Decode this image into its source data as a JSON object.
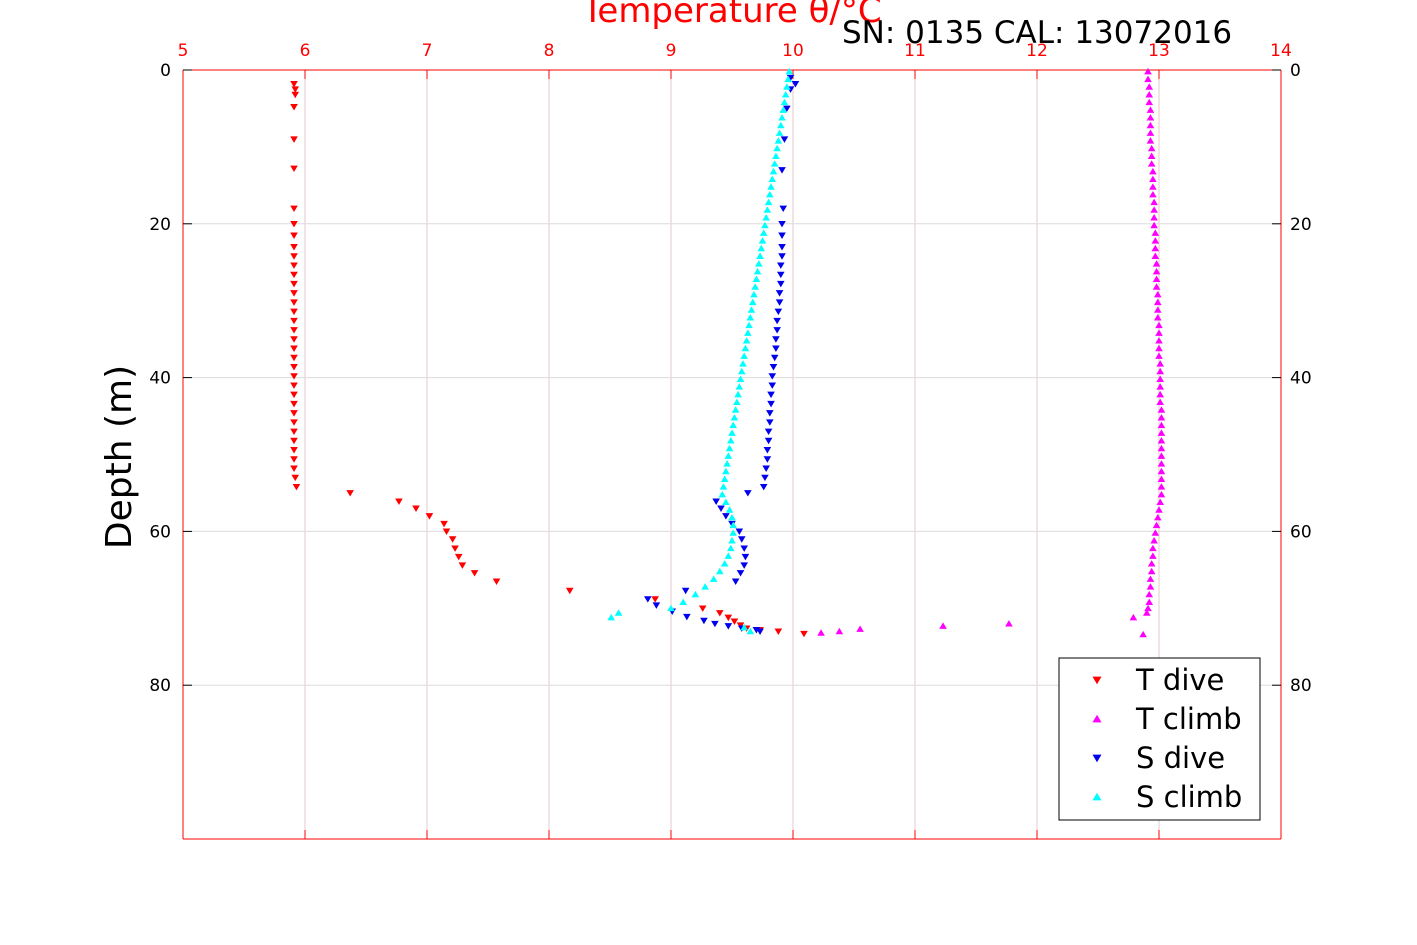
{
  "chart_data": {
    "type": "scatter",
    "title": "",
    "annotation": "SN: 0135  CAL: 13072016",
    "xlabel": "Temperature θ/°C",
    "ylabel": "Depth (m)",
    "xlim": [
      5,
      14
    ],
    "ylim": [
      0,
      100
    ],
    "y_reversed": true,
    "x_axis_position": "top",
    "y_axis_sides": [
      "left",
      "right"
    ],
    "xticks": [
      5,
      6,
      7,
      8,
      9,
      10,
      11,
      12,
      13,
      14
    ],
    "yticks": [
      0,
      20,
      40,
      60,
      80
    ],
    "grid": true,
    "legend_position": "bottom-right",
    "colors": {
      "axis": "#ff0000",
      "grid": "#e6c8c8",
      "t_dive": "#ff0000",
      "t_climb": "#ff00ff",
      "s_dive": "#0000ee",
      "s_climb": "#00ffff"
    },
    "series": [
      {
        "name": "T dive",
        "marker": "triangle-down",
        "color": "#ff0000",
        "points": [
          [
            5.91,
            1.8
          ],
          [
            5.92,
            2.5
          ],
          [
            5.92,
            3.2
          ],
          [
            5.91,
            4.8
          ],
          [
            5.91,
            9
          ],
          [
            5.91,
            12.8
          ],
          [
            5.91,
            18
          ],
          [
            5.91,
            20
          ],
          [
            5.91,
            21.5
          ],
          [
            5.91,
            23
          ],
          [
            5.91,
            24.2
          ],
          [
            5.91,
            25.4
          ],
          [
            5.91,
            26.6
          ],
          [
            5.91,
            27.8
          ],
          [
            5.91,
            29
          ],
          [
            5.91,
            30.2
          ],
          [
            5.91,
            31.4
          ],
          [
            5.91,
            32.6
          ],
          [
            5.91,
            33.8
          ],
          [
            5.91,
            35
          ],
          [
            5.91,
            36.2
          ],
          [
            5.91,
            37.4
          ],
          [
            5.91,
            38.6
          ],
          [
            5.91,
            39.8
          ],
          [
            5.91,
            41
          ],
          [
            5.91,
            42.2
          ],
          [
            5.91,
            43.4
          ],
          [
            5.91,
            44.6
          ],
          [
            5.91,
            45.8
          ],
          [
            5.91,
            47
          ],
          [
            5.91,
            48.2
          ],
          [
            5.91,
            49.4
          ],
          [
            5.91,
            50.6
          ],
          [
            5.91,
            51.8
          ],
          [
            5.92,
            53
          ],
          [
            5.93,
            54.2
          ],
          [
            6.37,
            55
          ],
          [
            6.77,
            56.1
          ],
          [
            6.91,
            57
          ],
          [
            7.02,
            58
          ],
          [
            7.14,
            59
          ],
          [
            7.16,
            60
          ],
          [
            7.21,
            61
          ],
          [
            7.23,
            62.2
          ],
          [
            7.26,
            63.3
          ],
          [
            7.29,
            64.4
          ],
          [
            7.39,
            65.4
          ],
          [
            7.57,
            66.5
          ],
          [
            8.17,
            67.7
          ],
          [
            8.87,
            68.8
          ],
          [
            9.26,
            70
          ],
          [
            9.4,
            70.6
          ],
          [
            9.47,
            71.2
          ],
          [
            9.52,
            71.7
          ],
          [
            9.57,
            72.2
          ],
          [
            9.62,
            72.6
          ],
          [
            9.73,
            72.8
          ],
          [
            9.88,
            73
          ],
          [
            10.09,
            73.3
          ]
        ]
      },
      {
        "name": "T climb",
        "marker": "triangle-up",
        "color": "#ff00ff",
        "points": [
          [
            12.91,
            0.2
          ],
          [
            12.91,
            1.2
          ],
          [
            12.92,
            2.2
          ],
          [
            12.92,
            3.2
          ],
          [
            12.92,
            4.2
          ],
          [
            12.93,
            5.2
          ],
          [
            12.93,
            6.2
          ],
          [
            12.93,
            7.2
          ],
          [
            12.93,
            8.2
          ],
          [
            12.93,
            9.2
          ],
          [
            12.94,
            10.2
          ],
          [
            12.94,
            11.2
          ],
          [
            12.94,
            12.2
          ],
          [
            12.95,
            13.2
          ],
          [
            12.95,
            14.2
          ],
          [
            12.95,
            15.2
          ],
          [
            12.95,
            16.2
          ],
          [
            12.96,
            17.2
          ],
          [
            12.96,
            18.2
          ],
          [
            12.96,
            19.2
          ],
          [
            12.96,
            20.2
          ],
          [
            12.97,
            21.2
          ],
          [
            12.97,
            22.2
          ],
          [
            12.97,
            23.2
          ],
          [
            12.97,
            24.2
          ],
          [
            12.98,
            25.2
          ],
          [
            12.98,
            26.2
          ],
          [
            12.98,
            27.2
          ],
          [
            12.98,
            28.2
          ],
          [
            12.99,
            29.2
          ],
          [
            12.99,
            30.2
          ],
          [
            12.99,
            31.2
          ],
          [
            12.99,
            32.2
          ],
          [
            13.0,
            33.2
          ],
          [
            13.0,
            34.2
          ],
          [
            13.0,
            35.2
          ],
          [
            13.0,
            36.2
          ],
          [
            13.0,
            37.2
          ],
          [
            13.01,
            38.2
          ],
          [
            13.01,
            39.2
          ],
          [
            13.01,
            40.2
          ],
          [
            13.01,
            41.2
          ],
          [
            13.01,
            42.2
          ],
          [
            13.01,
            43.2
          ],
          [
            13.02,
            44.2
          ],
          [
            13.02,
            45.2
          ],
          [
            13.02,
            46.2
          ],
          [
            13.02,
            47.2
          ],
          [
            13.02,
            48.2
          ],
          [
            13.02,
            49.2
          ],
          [
            13.02,
            50.2
          ],
          [
            13.02,
            51.2
          ],
          [
            13.02,
            52.2
          ],
          [
            13.02,
            53.2
          ],
          [
            13.02,
            54.2
          ],
          [
            13.02,
            55.2
          ],
          [
            13.01,
            56.2
          ],
          [
            13.0,
            57.2
          ],
          [
            12.99,
            58.2
          ],
          [
            12.98,
            59.2
          ],
          [
            12.97,
            60.2
          ],
          [
            12.96,
            61.2
          ],
          [
            12.95,
            62.2
          ],
          [
            12.95,
            63.2
          ],
          [
            12.94,
            64.2
          ],
          [
            12.94,
            65.2
          ],
          [
            12.93,
            66.2
          ],
          [
            12.93,
            67.2
          ],
          [
            12.92,
            68.2
          ],
          [
            12.92,
            69.2
          ],
          [
            12.91,
            70
          ],
          [
            12.9,
            70.6
          ],
          [
            12.79,
            71.2
          ],
          [
            11.77,
            72
          ],
          [
            11.23,
            72.3
          ],
          [
            10.55,
            72.7
          ],
          [
            10.38,
            73
          ],
          [
            10.23,
            73.2
          ],
          [
            12.87,
            73.4
          ]
        ]
      },
      {
        "name": "S dive",
        "marker": "triangle-down",
        "color": "#0000ee",
        "points": [
          [
            9.98,
            1
          ],
          [
            10.02,
            1.8
          ],
          [
            9.98,
            2.5
          ],
          [
            9.95,
            5
          ],
          [
            9.93,
            9
          ],
          [
            9.91,
            13
          ],
          [
            9.92,
            18
          ],
          [
            9.91,
            20
          ],
          [
            9.91,
            21.5
          ],
          [
            9.91,
            23
          ],
          [
            9.91,
            24.2
          ],
          [
            9.9,
            25.4
          ],
          [
            9.9,
            26.6
          ],
          [
            9.9,
            27.8
          ],
          [
            9.89,
            29
          ],
          [
            9.89,
            30.2
          ],
          [
            9.88,
            31.4
          ],
          [
            9.87,
            32.6
          ],
          [
            9.87,
            33.8
          ],
          [
            9.86,
            35
          ],
          [
            9.86,
            36.2
          ],
          [
            9.85,
            37.4
          ],
          [
            9.84,
            38.6
          ],
          [
            9.83,
            39.8
          ],
          [
            9.83,
            41
          ],
          [
            9.82,
            42.2
          ],
          [
            9.82,
            43.4
          ],
          [
            9.81,
            44.6
          ],
          [
            9.81,
            45.8
          ],
          [
            9.8,
            47
          ],
          [
            9.8,
            48.2
          ],
          [
            9.79,
            49.4
          ],
          [
            9.79,
            50.6
          ],
          [
            9.78,
            51.8
          ],
          [
            9.77,
            53
          ],
          [
            9.76,
            54.2
          ],
          [
            9.63,
            55
          ],
          [
            9.37,
            56.1
          ],
          [
            9.41,
            57
          ],
          [
            9.45,
            58
          ],
          [
            9.5,
            59
          ],
          [
            9.56,
            60
          ],
          [
            9.58,
            61
          ],
          [
            9.6,
            62.2
          ],
          [
            9.61,
            63.3
          ],
          [
            9.6,
            64.4
          ],
          [
            9.57,
            65.4
          ],
          [
            9.53,
            66.5
          ],
          [
            9.12,
            67.7
          ],
          [
            8.81,
            68.8
          ],
          [
            8.88,
            69.6
          ],
          [
            9.01,
            70.4
          ],
          [
            9.13,
            71.1
          ],
          [
            9.27,
            71.6
          ],
          [
            9.36,
            72
          ],
          [
            9.47,
            72.3
          ],
          [
            9.58,
            72.6
          ],
          [
            9.7,
            72.8
          ],
          [
            9.73,
            73
          ]
        ]
      },
      {
        "name": "S climb",
        "marker": "triangle-up",
        "color": "#00ffff",
        "points": [
          [
            9.97,
            0.2
          ],
          [
            9.96,
            1.2
          ],
          [
            9.95,
            2.2
          ],
          [
            9.94,
            3.2
          ],
          [
            9.93,
            4.2
          ],
          [
            9.92,
            5.2
          ],
          [
            9.91,
            6.2
          ],
          [
            9.9,
            7.2
          ],
          [
            9.89,
            8.2
          ],
          [
            9.88,
            9.2
          ],
          [
            9.87,
            10.2
          ],
          [
            9.86,
            11.2
          ],
          [
            9.85,
            12.2
          ],
          [
            9.84,
            13.2
          ],
          [
            9.83,
            14.2
          ],
          [
            9.82,
            15.2
          ],
          [
            9.81,
            16.2
          ],
          [
            9.8,
            17.2
          ],
          [
            9.79,
            18.2
          ],
          [
            9.78,
            19.2
          ],
          [
            9.77,
            20.2
          ],
          [
            9.76,
            21.2
          ],
          [
            9.75,
            22.2
          ],
          [
            9.74,
            23.2
          ],
          [
            9.73,
            24.2
          ],
          [
            9.72,
            25.2
          ],
          [
            9.71,
            26.2
          ],
          [
            9.7,
            27.2
          ],
          [
            9.69,
            28.2
          ],
          [
            9.68,
            29.2
          ],
          [
            9.67,
            30.2
          ],
          [
            9.66,
            31.2
          ],
          [
            9.65,
            32.2
          ],
          [
            9.64,
            33.2
          ],
          [
            9.63,
            34.2
          ],
          [
            9.62,
            35.2
          ],
          [
            9.61,
            36.2
          ],
          [
            9.6,
            37.2
          ],
          [
            9.59,
            38.2
          ],
          [
            9.58,
            39.2
          ],
          [
            9.57,
            40.2
          ],
          [
            9.56,
            41.2
          ],
          [
            9.55,
            42.2
          ],
          [
            9.54,
            43.2
          ],
          [
            9.53,
            44.2
          ],
          [
            9.52,
            45.2
          ],
          [
            9.51,
            46.2
          ],
          [
            9.5,
            47.2
          ],
          [
            9.49,
            48.2
          ],
          [
            9.48,
            49.2
          ],
          [
            9.47,
            50.2
          ],
          [
            9.46,
            51.2
          ],
          [
            9.45,
            52.2
          ],
          [
            9.44,
            53.2
          ],
          [
            9.43,
            54.2
          ],
          [
            9.42,
            55.2
          ],
          [
            9.45,
            56.2
          ],
          [
            9.48,
            57.2
          ],
          [
            9.5,
            58.2
          ],
          [
            9.51,
            59.2
          ],
          [
            9.51,
            60.2
          ],
          [
            9.5,
            61.2
          ],
          [
            9.49,
            62.2
          ],
          [
            9.47,
            63.2
          ],
          [
            9.44,
            64.2
          ],
          [
            9.4,
            65.2
          ],
          [
            9.35,
            66.2
          ],
          [
            9.28,
            67.2
          ],
          [
            9.2,
            68.2
          ],
          [
            9.1,
            69.2
          ],
          [
            9.0,
            70
          ],
          [
            8.57,
            70.6
          ],
          [
            8.51,
            71.2
          ],
          [
            9.6,
            72.5
          ],
          [
            9.65,
            73
          ]
        ]
      }
    ]
  }
}
